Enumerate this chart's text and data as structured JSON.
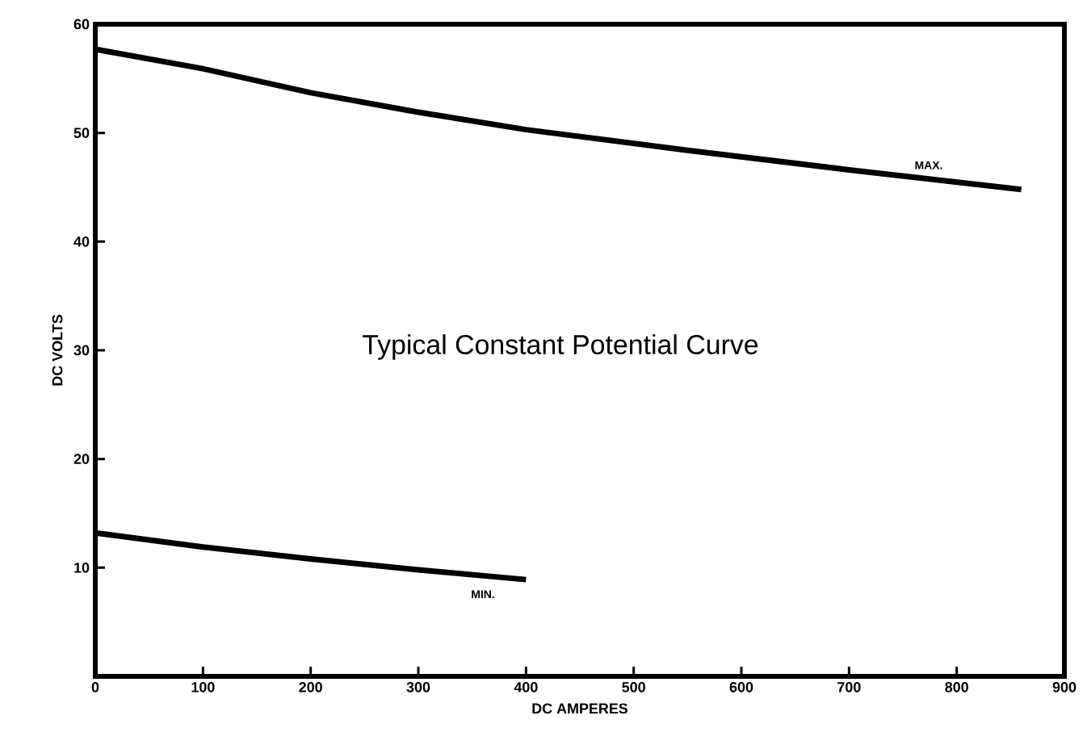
{
  "chart_data": {
    "type": "line",
    "title": "Typical Constant Potential Curve",
    "xlabel": "DC AMPERES",
    "ylabel": "DC VOLTS",
    "series": [
      {
        "name": "MAX.",
        "color": "#000000",
        "x": [
          0,
          100,
          200,
          300,
          400,
          550,
          700,
          860
        ],
        "values": [
          57.7,
          55.9,
          53.7,
          51.9,
          50.3,
          48.4,
          46.6,
          44.8
        ]
      },
      {
        "name": "MIN.",
        "color": "#000000",
        "x": [
          0,
          100,
          200,
          300,
          400
        ],
        "values": [
          13.2,
          11.9,
          10.8,
          9.8,
          8.9
        ]
      }
    ],
    "xlim": [
      0,
      900
    ],
    "ylim": [
      0,
      60
    ],
    "xticks": [
      0,
      100,
      200,
      300,
      400,
      500,
      600,
      700,
      800,
      900
    ],
    "yticks": [
      10,
      20,
      30,
      40,
      50,
      60
    ],
    "grid": false,
    "marker": "none",
    "line_style": "solid"
  }
}
